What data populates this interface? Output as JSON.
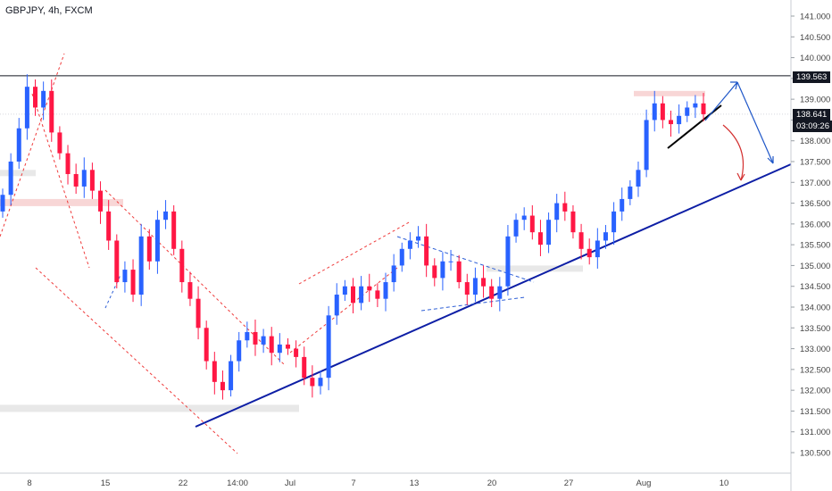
{
  "header": {
    "symbol_line": "GBPJPY, 4h, FXCM"
  },
  "price_axis": {
    "ticks": [
      "141.000",
      "140.500",
      "140.000",
      "139.500",
      "139.000",
      "138.500",
      "138.000",
      "137.500",
      "137.000",
      "136.500",
      "136.000",
      "135.500",
      "135.000",
      "134.500",
      "134.000",
      "133.500",
      "133.000",
      "132.500",
      "132.000",
      "131.500",
      "131.000",
      "130.500"
    ],
    "current_price": "138.641",
    "countdown": "03:09:26",
    "resistance_level": "139.563"
  },
  "time_axis": {
    "labels": [
      "8",
      "15",
      "22",
      "14:00",
      "Jul",
      "7",
      "13",
      "20",
      "27",
      "Aug",
      "10"
    ]
  },
  "colors": {
    "bull": "#2962ff",
    "bear": "#ff1744",
    "trendline": "#0d1ea5",
    "channel": "#ef3b3b",
    "triangle": "#2e5fd6",
    "zone_red": "#f8d6d6",
    "zone_gray": "#e8e8e8",
    "projection_red": "#d32f2f",
    "projection_blue": "#1e56c8"
  },
  "chart_data": {
    "type": "candlestick",
    "title": "GBPJPY, 4h, FXCM",
    "ylim": [
      130.2,
      141.4
    ],
    "x_tick_labels": [
      "8",
      "15",
      "22",
      "14:00",
      "Jul",
      "7",
      "13",
      "20",
      "27",
      "Aug",
      "10"
    ],
    "y_tick_labels": [
      "141.000",
      "140.500",
      "140.000",
      "139.500",
      "139.000",
      "138.500",
      "138.000",
      "137.500",
      "137.000",
      "136.500",
      "136.000",
      "135.500",
      "135.000",
      "134.500",
      "134.000",
      "133.500",
      "133.000",
      "132.500",
      "132.000",
      "131.500",
      "131.000",
      "130.500"
    ],
    "current_price": 138.641,
    "horizontal_line": 139.563,
    "closes": [
      136.7,
      137.5,
      138.3,
      139.3,
      138.8,
      139.2,
      138.2,
      137.7,
      137.2,
      136.9,
      137.3,
      136.8,
      136.3,
      135.6,
      134.6,
      134.9,
      134.3,
      135.7,
      135.1,
      136.1,
      136.3,
      135.4,
      134.6,
      134.2,
      133.5,
      132.7,
      132.2,
      132.0,
      132.7,
      133.2,
      133.4,
      133.1,
      133.3,
      132.9,
      133.1,
      133.0,
      132.8,
      132.3,
      132.1,
      132.3,
      133.8,
      134.3,
      134.5,
      134.1,
      134.5,
      134.4,
      134.2,
      134.6,
      135.0,
      135.4,
      135.6,
      135.7,
      135.0,
      134.7,
      135.1,
      135.1,
      134.6,
      134.3,
      134.7,
      134.5,
      134.2,
      134.5,
      135.7,
      136.1,
      136.2,
      135.8,
      135.5,
      136.1,
      136.5,
      136.3,
      135.8,
      135.4,
      135.2,
      135.6,
      135.8,
      136.3,
      136.6,
      136.9,
      137.3,
      138.5,
      138.9,
      138.5,
      138.4,
      138.6,
      138.8,
      138.9,
      138.64
    ]
  }
}
